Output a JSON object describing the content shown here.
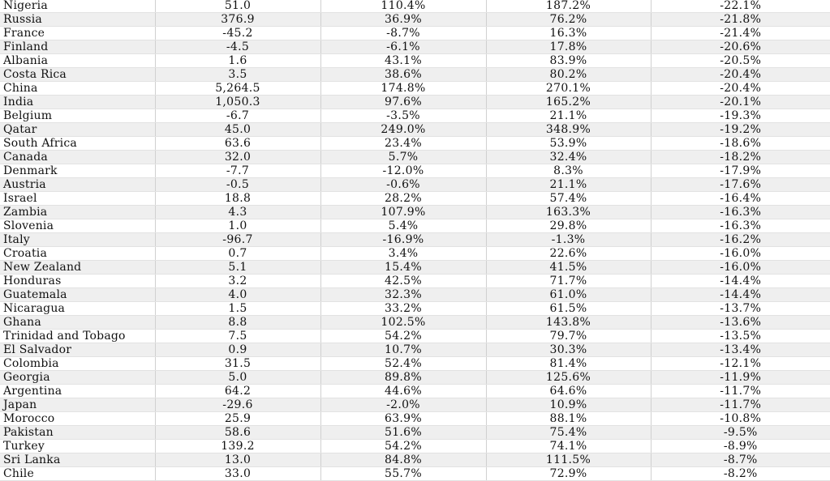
{
  "table": {
    "rows": [
      [
        "Nigeria",
        "51.0",
        "110.4%",
        "187.2%",
        "-22.1%"
      ],
      [
        "Russia",
        "376.9",
        "36.9%",
        "76.2%",
        "-21.8%"
      ],
      [
        "France",
        "-45.2",
        "-8.7%",
        "16.3%",
        "-21.4%"
      ],
      [
        "Finland",
        "-4.5",
        "-6.1%",
        "17.8%",
        "-20.6%"
      ],
      [
        "Albania",
        "1.6",
        "43.1%",
        "83.9%",
        "-20.5%"
      ],
      [
        "Costa Rica",
        "3.5",
        "38.6%",
        "80.2%",
        "-20.4%"
      ],
      [
        "China",
        "5,264.5",
        "174.8%",
        "270.1%",
        "-20.4%"
      ],
      [
        "India",
        "1,050.3",
        "97.6%",
        "165.2%",
        "-20.1%"
      ],
      [
        "Belgium",
        "-6.7",
        "-3.5%",
        "21.1%",
        "-19.3%"
      ],
      [
        "Qatar",
        "45.0",
        "249.0%",
        "348.9%",
        "-19.2%"
      ],
      [
        "South Africa",
        "63.6",
        "23.4%",
        "53.9%",
        "-18.6%"
      ],
      [
        "Canada",
        "32.0",
        "5.7%",
        "32.4%",
        "-18.2%"
      ],
      [
        "Denmark",
        "-7.7",
        "-12.0%",
        "8.3%",
        "-17.9%"
      ],
      [
        "Austria",
        "-0.5",
        "-0.6%",
        "21.1%",
        "-17.6%"
      ],
      [
        "Israel",
        "18.8",
        "28.2%",
        "57.4%",
        "-16.4%"
      ],
      [
        "Zambia",
        "4.3",
        "107.9%",
        "163.3%",
        "-16.3%"
      ],
      [
        "Slovenia",
        "1.0",
        "5.4%",
        "29.8%",
        "-16.3%"
      ],
      [
        "Italy",
        "-96.7",
        "-16.9%",
        "-1.3%",
        "-16.2%"
      ],
      [
        "Croatia",
        "0.7",
        "3.4%",
        "22.6%",
        "-16.0%"
      ],
      [
        "New Zealand",
        "5.1",
        "15.4%",
        "41.5%",
        "-16.0%"
      ],
      [
        "Honduras",
        "3.2",
        "42.5%",
        "71.7%",
        "-14.4%"
      ],
      [
        "Guatemala",
        "4.0",
        "32.3%",
        "61.0%",
        "-14.4%"
      ],
      [
        "Nicaragua",
        "1.5",
        "33.2%",
        "61.5%",
        "-13.7%"
      ],
      [
        "Ghana",
        "8.8",
        "102.5%",
        "143.8%",
        "-13.6%"
      ],
      [
        "Trinidad and Tobago",
        "7.5",
        "54.2%",
        "79.7%",
        "-13.5%"
      ],
      [
        "El Salvador",
        "0.9",
        "10.7%",
        "30.3%",
        "-13.4%"
      ],
      [
        "Colombia",
        "31.5",
        "52.4%",
        "81.4%",
        "-12.1%"
      ],
      [
        "Georgia",
        "5.0",
        "89.8%",
        "125.6%",
        "-11.9%"
      ],
      [
        "Argentina",
        "64.2",
        "44.6%",
        "64.6%",
        "-11.7%"
      ],
      [
        "Japan",
        "-29.6",
        "-2.0%",
        "10.9%",
        "-11.7%"
      ],
      [
        "Morocco",
        "25.9",
        "63.9%",
        "88.1%",
        "-10.8%"
      ],
      [
        "Pakistan",
        "58.6",
        "51.6%",
        "75.4%",
        "-9.5%"
      ],
      [
        "Turkey",
        "139.2",
        "54.2%",
        "74.1%",
        "-8.9%"
      ],
      [
        "Sri Lanka",
        "13.0",
        "84.8%",
        "111.5%",
        "-8.7%"
      ],
      [
        "Chile",
        "33.0",
        "55.7%",
        "72.9%",
        "-8.2%"
      ]
    ]
  }
}
